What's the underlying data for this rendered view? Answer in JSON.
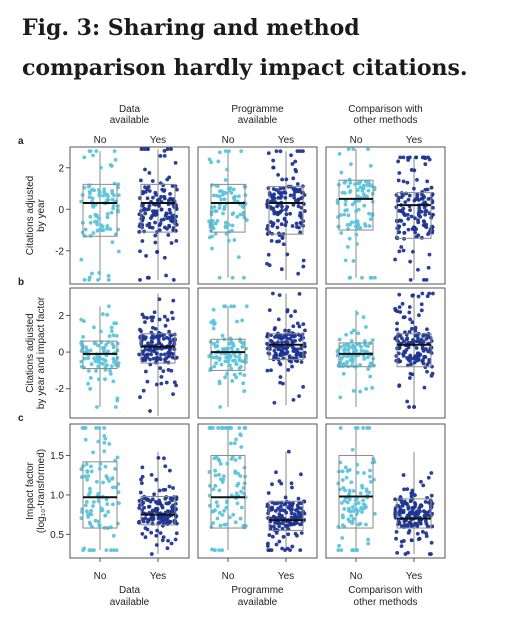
{
  "heading": "Fig. 3: Sharing and method comparison hardly impact citations.",
  "colors": {
    "no": "#5bc4dc",
    "yes": "#1f3592",
    "frame": "#555555",
    "box": "#8a8a8a",
    "median": "#111111"
  },
  "columns": [
    {
      "top_label": "Data available",
      "bottom_label": "Data available"
    },
    {
      "top_label": "Programme available",
      "bottom_label": "Programme available"
    },
    {
      "top_label": "Comparison with other methods",
      "bottom_label": "Comparison with other methods"
    }
  ],
  "category_labels": [
    "No",
    "Yes"
  ],
  "row_letters": [
    "a",
    "b",
    "c"
  ],
  "row_ylabels": [
    [
      "Citations adjusted",
      "by year"
    ],
    [
      "Citations adjusted",
      "by year and impact factor"
    ],
    [
      "Impact factor",
      "(log₁₀-transformed)"
    ]
  ],
  "chart_data": [
    {
      "type": "box",
      "panel": "a",
      "ylabel": "Citations adjusted by year",
      "ylim": [
        -3.6,
        3.0
      ],
      "yticks": [
        -2,
        0,
        2
      ],
      "ytick_labels": [
        "-2",
        "0",
        "2"
      ],
      "categories": [
        "No",
        "Yes"
      ],
      "groups": [
        {
          "column": "Data available",
          "No": {
            "whisker_low": -3.4,
            "q1": -1.3,
            "median": 0.3,
            "q3": 1.2,
            "whisker_high": 2.8
          },
          "Yes": {
            "whisker_low": -3.4,
            "q1": -1.1,
            "median": 0.3,
            "q3": 1.2,
            "whisker_high": 2.9
          }
        },
        {
          "column": "Programme available",
          "No": {
            "whisker_low": -3.3,
            "q1": -1.1,
            "median": 0.3,
            "q3": 1.2,
            "whisker_high": 2.8
          },
          "Yes": {
            "whisker_low": -3.4,
            "q1": -1.2,
            "median": 0.3,
            "q3": 1.1,
            "whisker_high": 2.8
          }
        },
        {
          "column": "Comparison with other methods",
          "No": {
            "whisker_low": -3.3,
            "q1": -1.0,
            "median": 0.5,
            "q3": 1.4,
            "whisker_high": 2.9
          },
          "Yes": {
            "whisker_low": -3.4,
            "q1": -1.4,
            "median": 0.2,
            "q3": 0.8,
            "whisker_high": 2.5
          }
        }
      ]
    },
    {
      "type": "box",
      "panel": "b",
      "ylabel": "Citations adjusted by year and impact factor",
      "ylim": [
        -3.6,
        3.5
      ],
      "yticks": [
        -2,
        0,
        2
      ],
      "ytick_labels": [
        "-2",
        "0",
        "2"
      ],
      "categories": [
        "No",
        "Yes"
      ],
      "groups": [
        {
          "column": "Data available",
          "No": {
            "whisker_low": -3.0,
            "q1": -0.9,
            "median": -0.1,
            "q3": 0.6,
            "whisker_high": 2.5
          },
          "Yes": {
            "whisker_low": -3.5,
            "q1": -0.6,
            "median": 0.3,
            "q3": 1.0,
            "whisker_high": 3.2
          }
        },
        {
          "column": "Programme available",
          "No": {
            "whisker_low": -3.0,
            "q1": -1.0,
            "median": 0.0,
            "q3": 0.7,
            "whisker_high": 2.5
          },
          "Yes": {
            "whisker_low": -2.9,
            "q1": -0.4,
            "median": 0.4,
            "q3": 1.0,
            "whisker_high": 3.2
          }
        },
        {
          "column": "Comparison with other methods",
          "No": {
            "whisker_low": -3.0,
            "q1": -0.8,
            "median": -0.1,
            "q3": 0.5,
            "whisker_high": 2.3
          },
          "Yes": {
            "whisker_low": -3.0,
            "q1": -0.8,
            "median": 0.4,
            "q3": 1.0,
            "whisker_high": 3.2
          }
        }
      ]
    },
    {
      "type": "box",
      "panel": "c",
      "ylabel": "Impact factor (log10-transformed)",
      "ylim": [
        0.2,
        1.9
      ],
      "yticks": [
        0.5,
        1.0,
        1.5
      ],
      "ytick_labels": [
        "0.5",
        "1.0",
        "1.5"
      ],
      "categories": [
        "No",
        "Yes"
      ],
      "groups": [
        {
          "column": "Data available",
          "No": {
            "whisker_low": 0.3,
            "q1": 0.58,
            "median": 0.97,
            "q3": 1.42,
            "whisker_high": 1.85
          },
          "Yes": {
            "whisker_low": 0.25,
            "q1": 0.62,
            "median": 0.75,
            "q3": 0.98,
            "whisker_high": 1.55
          }
        },
        {
          "column": "Programme available",
          "No": {
            "whisker_low": 0.3,
            "q1": 0.58,
            "median": 0.97,
            "q3": 1.5,
            "whisker_high": 1.85
          },
          "Yes": {
            "whisker_low": 0.3,
            "q1": 0.55,
            "median": 0.68,
            "q3": 0.92,
            "whisker_high": 1.55
          }
        },
        {
          "column": "Comparison with other methods",
          "No": {
            "whisker_low": 0.3,
            "q1": 0.58,
            "median": 0.98,
            "q3": 1.5,
            "whisker_high": 1.85
          },
          "Yes": {
            "whisker_low": 0.25,
            "q1": 0.58,
            "median": 0.7,
            "q3": 0.95,
            "whisker_high": 1.55
          }
        }
      ]
    }
  ]
}
